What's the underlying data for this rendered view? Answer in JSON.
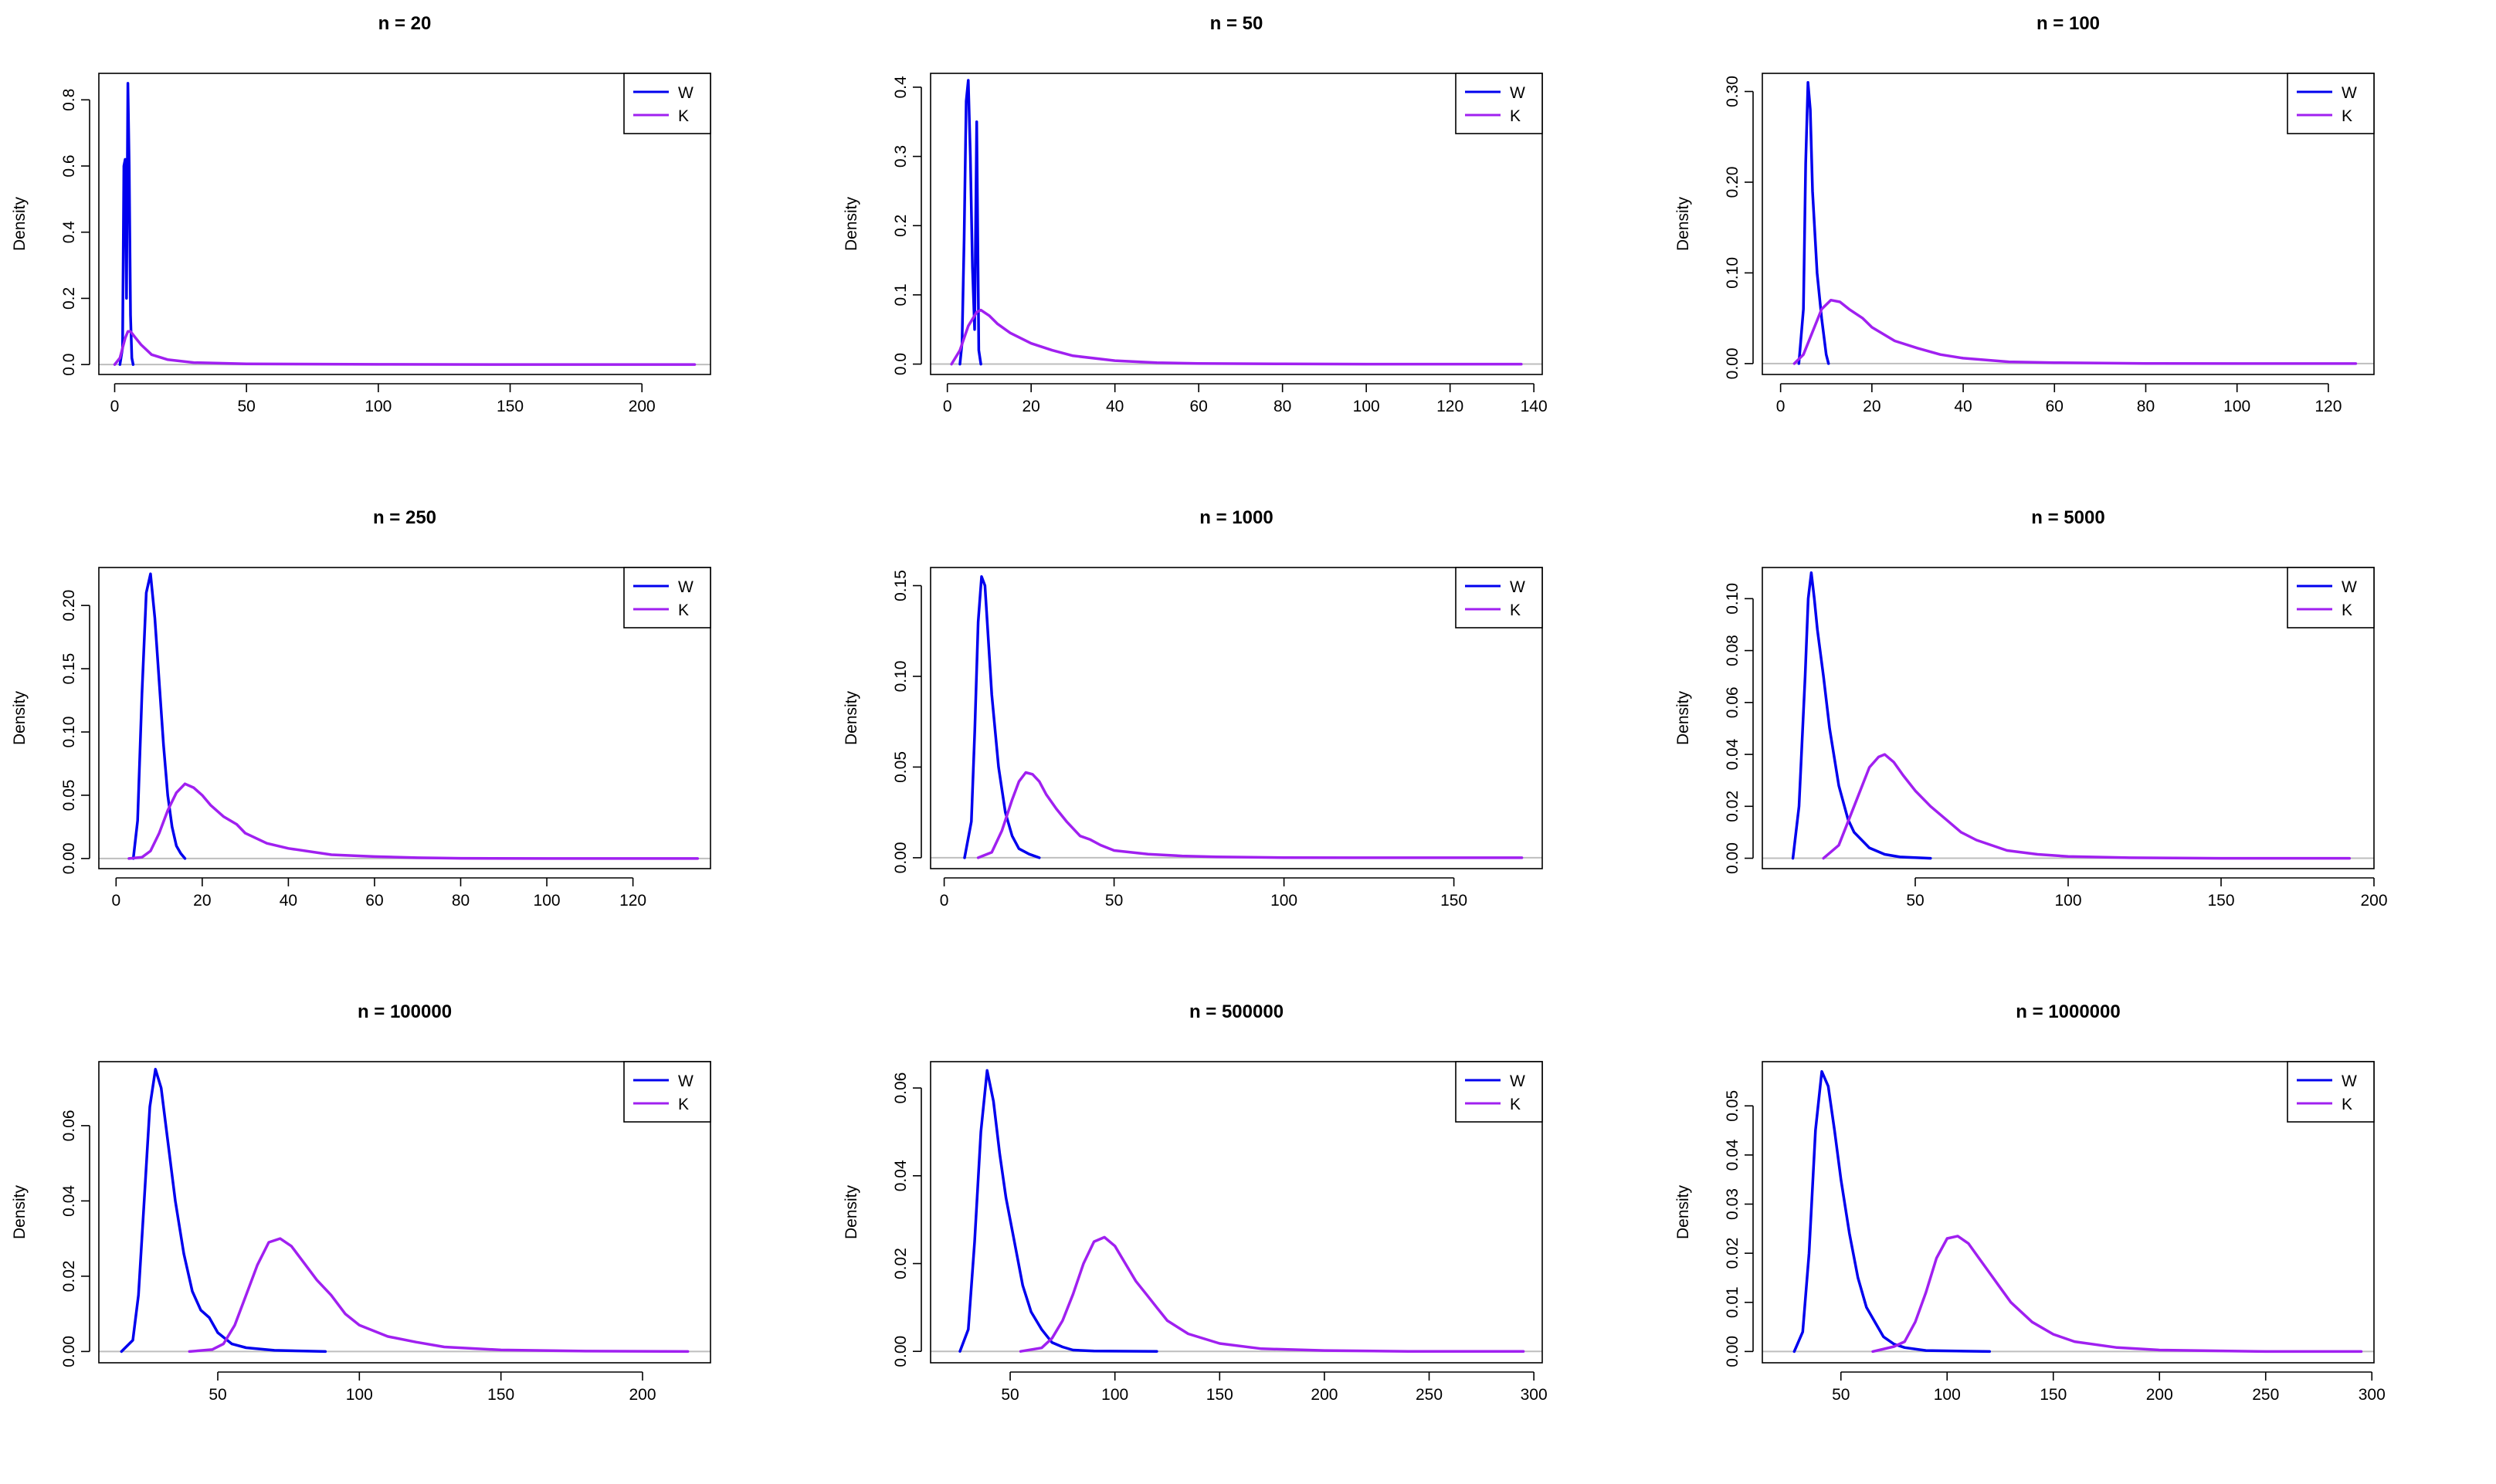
{
  "colors": {
    "W": "#0000EE",
    "K": "#A020F0",
    "axis": "#000000",
    "zero_line": "#BEBEBE"
  },
  "chart_data": [
    {
      "type": "line",
      "title": "n = 20",
      "xlabel": "",
      "ylabel": "Density",
      "xlim": [
        -6,
        226
      ],
      "ylim": [
        -0.03,
        0.88
      ],
      "xticks": [
        0,
        50,
        100,
        150,
        200
      ],
      "yticks": [
        0.0,
        0.2,
        0.4,
        0.6,
        0.8
      ],
      "xtick_labels": [
        "0",
        "50",
        "100",
        "150",
        "200"
      ],
      "ytick_labels": [
        "0.0",
        "0.2",
        "0.4",
        "0.6",
        "0.8"
      ],
      "legend": {
        "position": "top-right",
        "entries": [
          "W",
          "K"
        ]
      },
      "series": [
        {
          "name": "W",
          "x": [
            2,
            3,
            3.5,
            4,
            4.5,
            5,
            5.5,
            6,
            6.5,
            7
          ],
          "y": [
            0,
            0.05,
            0.6,
            0.62,
            0.2,
            0.85,
            0.6,
            0.15,
            0.02,
            0
          ]
        },
        {
          "name": "K",
          "x": [
            0,
            2,
            4,
            5,
            6,
            8,
            10,
            14,
            20,
            30,
            50,
            100,
            150,
            220
          ],
          "y": [
            0,
            0.02,
            0.08,
            0.1,
            0.1,
            0.08,
            0.06,
            0.03,
            0.015,
            0.006,
            0.002,
            0.0005,
            0,
            0
          ]
        }
      ]
    },
    {
      "type": "line",
      "title": "n = 50",
      "xlabel": "",
      "ylabel": "Density",
      "xlim": [
        -4,
        142
      ],
      "ylim": [
        -0.015,
        0.42
      ],
      "xticks": [
        0,
        20,
        40,
        60,
        80,
        100,
        120,
        140
      ],
      "yticks": [
        0.0,
        0.1,
        0.2,
        0.3,
        0.4
      ],
      "xtick_labels": [
        "0",
        "20",
        "40",
        "60",
        "80",
        "100",
        "120",
        "140"
      ],
      "ytick_labels": [
        "0.0",
        "0.1",
        "0.2",
        "0.3",
        "0.4"
      ],
      "legend": {
        "position": "top-right",
        "entries": [
          "W",
          "K"
        ]
      },
      "series": [
        {
          "name": "W",
          "x": [
            3,
            3.5,
            4,
            4.5,
            5,
            5.5,
            6,
            6.5,
            7,
            7.5,
            8
          ],
          "y": [
            0,
            0.03,
            0.18,
            0.38,
            0.41,
            0.3,
            0.14,
            0.05,
            0.35,
            0.02,
            0
          ]
        },
        {
          "name": "K",
          "x": [
            1,
            3,
            5,
            7,
            8,
            10,
            12,
            15,
            20,
            25,
            30,
            40,
            50,
            60,
            80,
            100,
            137
          ],
          "y": [
            0,
            0.02,
            0.055,
            0.075,
            0.078,
            0.07,
            0.058,
            0.045,
            0.03,
            0.02,
            0.012,
            0.005,
            0.002,
            0.001,
            0.0003,
            0,
            0
          ]
        }
      ]
    },
    {
      "type": "line",
      "title": "n = 100",
      "xlabel": "",
      "ylabel": "Density",
      "xlim": [
        -4,
        130
      ],
      "ylim": [
        -0.012,
        0.32
      ],
      "xticks": [
        0,
        20,
        40,
        60,
        80,
        100,
        120
      ],
      "yticks": [
        0.0,
        0.1,
        0.2,
        0.3
      ],
      "xtick_labels": [
        "0",
        "20",
        "40",
        "60",
        "80",
        "100",
        "120"
      ],
      "ytick_labels": [
        "0.00",
        "0.10",
        "0.20",
        "0.30"
      ],
      "legend": {
        "position": "top-right",
        "entries": [
          "W",
          "K"
        ]
      },
      "series": [
        {
          "name": "W",
          "x": [
            4,
            5,
            5.5,
            6,
            6.5,
            7,
            8,
            9,
            10,
            10.5
          ],
          "y": [
            0,
            0.06,
            0.22,
            0.31,
            0.28,
            0.19,
            0.1,
            0.05,
            0.01,
            0
          ]
        },
        {
          "name": "K",
          "x": [
            3,
            5,
            7,
            9,
            11,
            13,
            15,
            18,
            20,
            25,
            30,
            35,
            40,
            50,
            60,
            80,
            100,
            126
          ],
          "y": [
            0,
            0.01,
            0.035,
            0.06,
            0.07,
            0.068,
            0.06,
            0.05,
            0.04,
            0.025,
            0.017,
            0.01,
            0.006,
            0.002,
            0.001,
            0.0002,
            0,
            0
          ]
        }
      ]
    },
    {
      "type": "line",
      "title": "n = 250",
      "xlabel": "",
      "ylabel": "Density",
      "xlim": [
        -4,
        138
      ],
      "ylim": [
        -0.008,
        0.23
      ],
      "xticks": [
        0,
        20,
        40,
        60,
        80,
        100,
        120
      ],
      "yticks": [
        0.0,
        0.05,
        0.1,
        0.15,
        0.2
      ],
      "xtick_labels": [
        "0",
        "20",
        "40",
        "60",
        "80",
        "100",
        "120"
      ],
      "ytick_labels": [
        "0.00",
        "0.05",
        "0.10",
        "0.15",
        "0.20"
      ],
      "legend": {
        "position": "top-right",
        "entries": [
          "W",
          "K"
        ]
      },
      "series": [
        {
          "name": "W",
          "x": [
            4,
            5,
            6,
            7,
            8,
            9,
            10,
            11,
            12,
            13,
            14,
            15,
            16
          ],
          "y": [
            0,
            0.03,
            0.13,
            0.21,
            0.225,
            0.19,
            0.14,
            0.09,
            0.05,
            0.025,
            0.01,
            0.004,
            0
          ]
        },
        {
          "name": "K",
          "x": [
            3,
            6,
            8,
            10,
            12,
            14,
            16,
            18,
            20,
            22,
            25,
            28,
            30,
            35,
            40,
            50,
            60,
            70,
            80,
            100,
            135
          ],
          "y": [
            0,
            0.001,
            0.006,
            0.02,
            0.038,
            0.052,
            0.059,
            0.056,
            0.05,
            0.042,
            0.033,
            0.027,
            0.02,
            0.012,
            0.008,
            0.003,
            0.0015,
            0.0006,
            0.0002,
            0,
            0
          ]
        }
      ]
    },
    {
      "type": "line",
      "title": "n = 1000",
      "xlabel": "",
      "ylabel": "Density",
      "xlim": [
        -4,
        176
      ],
      "ylim": [
        -0.006,
        0.16
      ],
      "xticks": [
        0,
        50,
        100,
        150
      ],
      "yticks": [
        0.0,
        0.05,
        0.1,
        0.15
      ],
      "xtick_labels": [
        "0",
        "50",
        "100",
        "150"
      ],
      "ytick_labels": [
        "0.00",
        "0.05",
        "0.10",
        "0.15"
      ],
      "legend": {
        "position": "top-right",
        "entries": [
          "W",
          "K"
        ]
      },
      "series": [
        {
          "name": "W",
          "x": [
            6,
            8,
            9,
            10,
            11,
            12,
            13,
            14,
            16,
            18,
            20,
            22,
            25,
            28
          ],
          "y": [
            0,
            0.02,
            0.07,
            0.13,
            0.155,
            0.15,
            0.12,
            0.09,
            0.05,
            0.025,
            0.012,
            0.005,
            0.002,
            0
          ]
        },
        {
          "name": "K",
          "x": [
            10,
            14,
            17,
            20,
            22,
            24,
            26,
            28,
            30,
            33,
            36,
            40,
            43,
            46,
            50,
            60,
            70,
            80,
            100,
            120,
            170
          ],
          "y": [
            0,
            0.003,
            0.015,
            0.032,
            0.042,
            0.047,
            0.046,
            0.042,
            0.035,
            0.027,
            0.02,
            0.012,
            0.01,
            0.007,
            0.004,
            0.002,
            0.001,
            0.0005,
            0.0001,
            0,
            0
          ]
        }
      ]
    },
    {
      "type": "line",
      "title": "n = 5000",
      "xlabel": "",
      "ylabel": "Density",
      "xlim": [
        0,
        200
      ],
      "ylim": [
        -0.004,
        0.112
      ],
      "xticks": [
        50,
        100,
        150,
        200
      ],
      "yticks": [
        0.0,
        0.02,
        0.04,
        0.06,
        0.08,
        0.1
      ],
      "xtick_labels": [
        "50",
        "100",
        "150",
        "200"
      ],
      "ytick_labels": [
        "0.00",
        "0.02",
        "0.04",
        "0.06",
        "0.08",
        "0.10"
      ],
      "legend": {
        "position": "top-right",
        "entries": [
          "W",
          "K"
        ]
      },
      "series": [
        {
          "name": "W",
          "x": [
            10,
            12,
            14,
            15,
            16,
            17,
            18,
            20,
            22,
            25,
            28,
            30,
            35,
            40,
            45,
            55
          ],
          "y": [
            0,
            0.02,
            0.07,
            0.1,
            0.11,
            0.1,
            0.088,
            0.07,
            0.05,
            0.028,
            0.015,
            0.01,
            0.004,
            0.0015,
            0.0005,
            0
          ]
        },
        {
          "name": "K",
          "x": [
            20,
            25,
            30,
            35,
            38,
            40,
            43,
            46,
            50,
            55,
            60,
            65,
            70,
            80,
            90,
            100,
            120,
            150,
            192
          ],
          "y": [
            0,
            0.005,
            0.02,
            0.035,
            0.039,
            0.04,
            0.037,
            0.032,
            0.026,
            0.02,
            0.015,
            0.01,
            0.007,
            0.003,
            0.0015,
            0.0007,
            0.0002,
            0,
            0
          ]
        }
      ]
    },
    {
      "type": "line",
      "title": "n = 100000",
      "xlabel": "",
      "ylabel": "Density",
      "xlim": [
        8,
        224
      ],
      "ylim": [
        -0.003,
        0.077
      ],
      "xticks": [
        50,
        100,
        150,
        200
      ],
      "yticks": [
        0.0,
        0.02,
        0.04,
        0.06
      ],
      "xtick_labels": [
        "50",
        "100",
        "150",
        "200"
      ],
      "ytick_labels": [
        "0.00",
        "0.02",
        "0.04",
        "0.06"
      ],
      "legend": {
        "position": "top-right",
        "entries": [
          "W",
          "K"
        ]
      },
      "series": [
        {
          "name": "W",
          "x": [
            16,
            20,
            22,
            24,
            26,
            28,
            30,
            32,
            35,
            38,
            41,
            44,
            47,
            50,
            55,
            60,
            70,
            88
          ],
          "y": [
            0,
            0.003,
            0.015,
            0.04,
            0.065,
            0.075,
            0.07,
            0.058,
            0.04,
            0.026,
            0.016,
            0.011,
            0.009,
            0.005,
            0.002,
            0.001,
            0.0003,
            0
          ]
        },
        {
          "name": "K",
          "x": [
            40,
            48,
            52,
            56,
            60,
            64,
            68,
            72,
            76,
            80,
            85,
            90,
            95,
            100,
            110,
            120,
            130,
            150,
            180,
            216
          ],
          "y": [
            0,
            0.0005,
            0.002,
            0.007,
            0.015,
            0.023,
            0.029,
            0.03,
            0.028,
            0.024,
            0.019,
            0.015,
            0.01,
            0.007,
            0.004,
            0.0025,
            0.0012,
            0.0004,
            0.0001,
            0
          ]
        }
      ]
    },
    {
      "type": "line",
      "title": "n = 500000",
      "xlabel": "",
      "ylabel": "Density",
      "xlim": [
        12,
        304
      ],
      "ylim": [
        -0.0026,
        0.066
      ],
      "xticks": [
        50,
        100,
        150,
        200,
        250,
        300
      ],
      "yticks": [
        0.0,
        0.02,
        0.04,
        0.06
      ],
      "xtick_labels": [
        "50",
        "100",
        "150",
        "200",
        "250",
        "300"
      ],
      "ytick_labels": [
        "0.00",
        "0.02",
        "0.04",
        "0.06"
      ],
      "legend": {
        "position": "top-right",
        "entries": [
          "W",
          "K"
        ]
      },
      "series": [
        {
          "name": "W",
          "x": [
            26,
            30,
            33,
            36,
            39,
            42,
            45,
            48,
            52,
            56,
            60,
            65,
            70,
            75,
            80,
            90,
            120
          ],
          "y": [
            0,
            0.005,
            0.025,
            0.05,
            0.064,
            0.057,
            0.045,
            0.035,
            0.025,
            0.015,
            0.009,
            0.005,
            0.002,
            0.001,
            0.0003,
            0.0001,
            0
          ]
        },
        {
          "name": "K",
          "x": [
            55,
            65,
            70,
            75,
            80,
            85,
            90,
            95,
            100,
            105,
            110,
            115,
            120,
            125,
            135,
            150,
            170,
            200,
            240,
            295
          ],
          "y": [
            0,
            0.0008,
            0.003,
            0.007,
            0.013,
            0.02,
            0.025,
            0.026,
            0.024,
            0.02,
            0.016,
            0.013,
            0.01,
            0.007,
            0.004,
            0.0018,
            0.0006,
            0.0002,
            0,
            0
          ]
        }
      ]
    },
    {
      "type": "line",
      "title": "n = 1000000",
      "xlabel": "",
      "ylabel": "Density",
      "xlim": [
        13,
        301
      ],
      "ylim": [
        -0.0023,
        0.059
      ],
      "xticks": [
        50,
        100,
        150,
        200,
        250,
        300
      ],
      "yticks": [
        0.0,
        0.01,
        0.02,
        0.03,
        0.04,
        0.05
      ],
      "xtick_labels": [
        "50",
        "100",
        "150",
        "200",
        "250",
        "300"
      ],
      "ytick_labels": [
        "0.00",
        "0.01",
        "0.02",
        "0.03",
        "0.04",
        "0.05"
      ],
      "legend": {
        "position": "top-right",
        "entries": [
          "W",
          "K"
        ]
      },
      "series": [
        {
          "name": "W",
          "x": [
            28,
            32,
            35,
            38,
            41,
            44,
            47,
            50,
            54,
            58,
            62,
            66,
            70,
            75,
            80,
            90,
            120
          ],
          "y": [
            0,
            0.004,
            0.02,
            0.045,
            0.057,
            0.054,
            0.045,
            0.035,
            0.024,
            0.015,
            0.009,
            0.006,
            0.003,
            0.0015,
            0.0008,
            0.0002,
            0
          ]
        },
        {
          "name": "K",
          "x": [
            65,
            75,
            80,
            85,
            90,
            95,
            100,
            105,
            110,
            115,
            120,
            125,
            130,
            140,
            150,
            160,
            180,
            200,
            250,
            295
          ],
          "y": [
            0,
            0.001,
            0.002,
            0.006,
            0.012,
            0.019,
            0.023,
            0.0235,
            0.022,
            0.019,
            0.016,
            0.013,
            0.01,
            0.006,
            0.0035,
            0.002,
            0.0008,
            0.0003,
            0,
            0
          ]
        }
      ]
    }
  ]
}
